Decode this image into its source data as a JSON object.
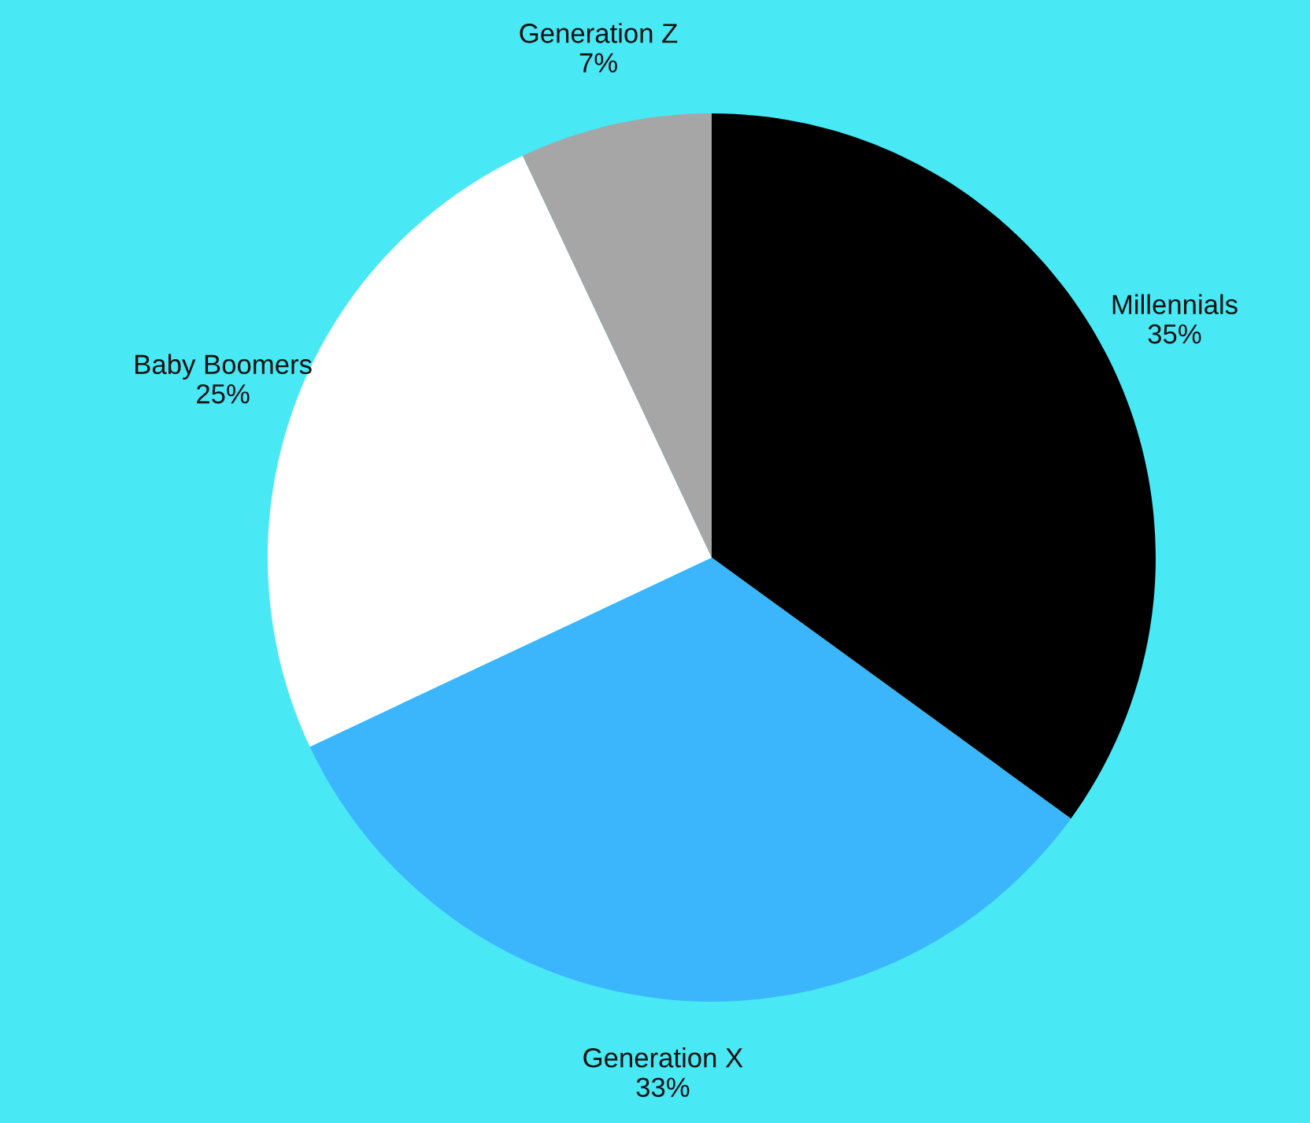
{
  "chart_data": {
    "type": "pie",
    "categories": [
      "Millennials",
      "Generation X",
      "Baby Boomers",
      "Generation Z"
    ],
    "values": [
      35,
      33,
      25,
      7
    ],
    "value_labels": [
      "35%",
      "33%",
      "25%",
      "7%"
    ],
    "colors": [
      "#000000",
      "#3bb5fb",
      "#ffffff",
      "#a6a6a6"
    ]
  }
}
